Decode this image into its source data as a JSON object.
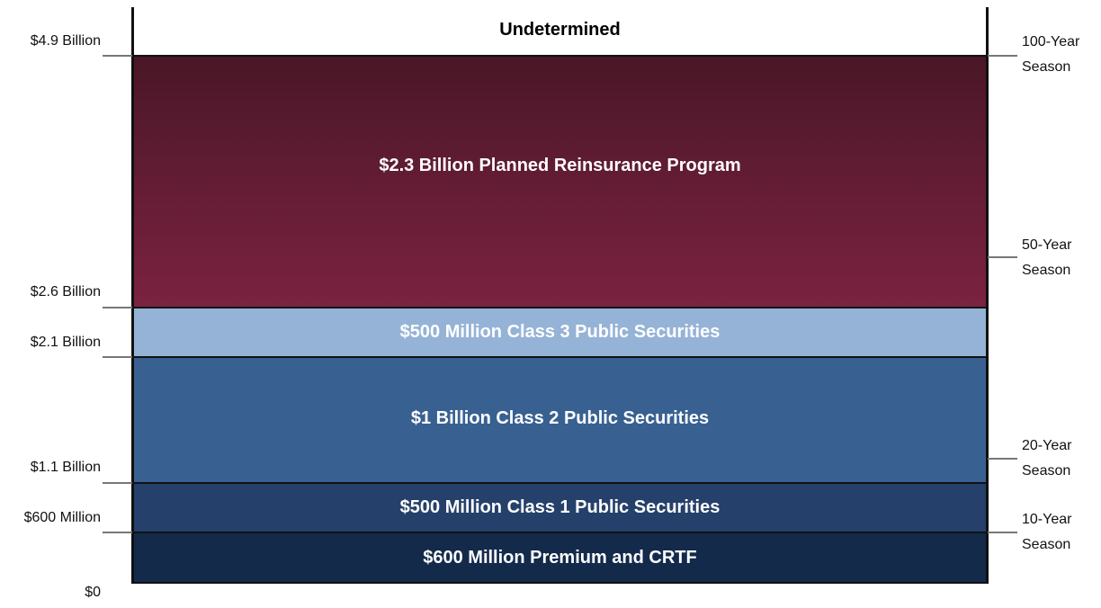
{
  "layers": [
    {
      "label": "Undetermined"
    },
    {
      "label": "$2.3 Billion Planned Reinsurance Program"
    },
    {
      "label": "$500 Million Class 3 Public Securities"
    },
    {
      "label": "$1 Billion Class 2 Public Securities"
    },
    {
      "label": "$500 Million Class 1 Public Securities"
    },
    {
      "label": "$600 Million Premium and CRTF"
    }
  ],
  "left_labels": [
    "$4.9 Billion",
    "$2.6 Billion",
    "$2.1 Billion",
    "$1.1 Billion",
    "$600 Million",
    "$0"
  ],
  "right_labels": [
    {
      "lines": [
        "100-Year",
        "Season"
      ]
    },
    {
      "lines": [
        "50-Year",
        "Season"
      ]
    },
    {
      "lines": [
        "20-Year",
        "Season"
      ]
    },
    {
      "lines": [
        "10-Year",
        "Season"
      ]
    }
  ]
}
